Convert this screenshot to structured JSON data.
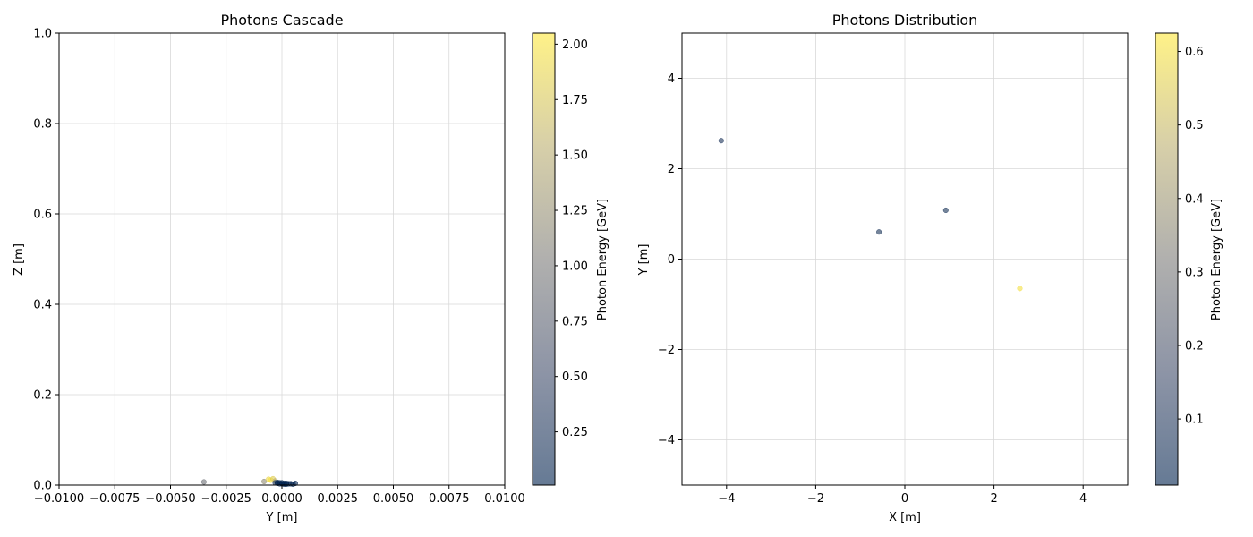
{
  "chart_data": [
    {
      "type": "scatter",
      "title": "Photons Cascade",
      "xlabel": "Y [m]",
      "ylabel": "Z [m]",
      "xlim": [
        -0.01,
        0.01
      ],
      "ylim": [
        0,
        1
      ],
      "xticks": [
        -0.01,
        -0.0075,
        -0.005,
        -0.0025,
        0,
        0.0025,
        0.005,
        0.0075,
        0.01
      ],
      "xtick_labels": [
        "−0.0100",
        "−0.0075",
        "−0.0050",
        "−0.0025",
        "0.0000",
        "0.0025",
        "0.0050",
        "0.0075",
        "0.0100"
      ],
      "yticks": [
        0,
        0.2,
        0.4,
        0.6,
        0.8,
        1.0
      ],
      "ytick_labels": [
        "0.0",
        "0.2",
        "0.4",
        "0.6",
        "0.8",
        "1.0"
      ],
      "grid": true,
      "colorbar": {
        "label": "Photon Energy [GeV]",
        "range": [
          0.01,
          2.05
        ],
        "ticks": [
          0.25,
          0.5,
          0.75,
          1.0,
          1.25,
          1.5,
          1.75,
          2.0
        ],
        "tick_labels": [
          "0.25",
          "0.50",
          "0.75",
          "1.00",
          "1.25",
          "1.50",
          "1.75",
          "2.00"
        ]
      },
      "points": [
        {
          "x": -0.0035,
          "y": 0.007,
          "e": 0.9
        },
        {
          "x": -0.0008,
          "y": 0.008,
          "e": 1.2
        },
        {
          "x": -0.0006,
          "y": 0.013,
          "e": 1.9
        },
        {
          "x": -0.0005,
          "y": 0.011,
          "e": 2.0
        },
        {
          "x": -0.0004,
          "y": 0.014,
          "e": 1.8
        },
        {
          "x": -0.0003,
          "y": 0.009,
          "e": 1.5
        },
        {
          "x": -0.0003,
          "y": 0.005,
          "e": 0.2
        },
        {
          "x": -0.0002,
          "y": 0.004,
          "e": 0.1
        },
        {
          "x": -0.0002,
          "y": 0.006,
          "e": 0.05
        },
        {
          "x": -0.0001,
          "y": 0.005,
          "e": 0.03
        },
        {
          "x": -0.0001,
          "y": 0.003,
          "e": 0.02
        },
        {
          "x": 0.0,
          "y": 0.005,
          "e": 0.05
        },
        {
          "x": 0.0,
          "y": 0.003,
          "e": 0.02
        },
        {
          "x": 0.0001,
          "y": 0.004,
          "e": 0.03
        },
        {
          "x": 0.0001,
          "y": 0.002,
          "e": 0.02
        },
        {
          "x": 0.0002,
          "y": 0.004,
          "e": 0.04
        },
        {
          "x": 0.0002,
          "y": 0.002,
          "e": 0.02
        },
        {
          "x": 0.0003,
          "y": 0.003,
          "e": 0.03
        },
        {
          "x": 0.0004,
          "y": 0.003,
          "e": 0.05
        },
        {
          "x": 0.0005,
          "y": 0.002,
          "e": 0.03
        },
        {
          "x": 0.0006,
          "y": 0.004,
          "e": 0.06
        }
      ]
    },
    {
      "type": "scatter",
      "title": "Photons Distribution",
      "xlabel": "X [m]",
      "ylabel": "Y [m]",
      "xlim": [
        -5,
        5
      ],
      "ylim": [
        -5,
        5
      ],
      "xticks": [
        -4,
        -2,
        0,
        2,
        4
      ],
      "xtick_labels": [
        "−4",
        "−2",
        "0",
        "2",
        "4"
      ],
      "yticks": [
        -4,
        -2,
        0,
        2,
        4
      ],
      "ytick_labels": [
        "−4",
        "−2",
        "0",
        "2",
        "4"
      ],
      "grid": true,
      "colorbar": {
        "label": "Photon Energy [GeV]",
        "range": [
          0.01,
          0.625
        ],
        "ticks": [
          0.1,
          0.2,
          0.3,
          0.4,
          0.5,
          0.6
        ],
        "tick_labels": [
          "0.1",
          "0.2",
          "0.3",
          "0.4",
          "0.5",
          "0.6"
        ]
      },
      "points": [
        {
          "x": -4.12,
          "y": 2.62,
          "e": 0.08
        },
        {
          "x": -0.58,
          "y": 0.6,
          "e": 0.07
        },
        {
          "x": 0.92,
          "y": 1.08,
          "e": 0.07
        },
        {
          "x": 2.58,
          "y": -0.65,
          "e": 0.6
        }
      ]
    }
  ],
  "colors": {
    "cmap_low": "#1f3d73",
    "cmap_mid": "#b3b3b3",
    "cmap_high": "#fee838",
    "grid": "#d9d9d9"
  }
}
